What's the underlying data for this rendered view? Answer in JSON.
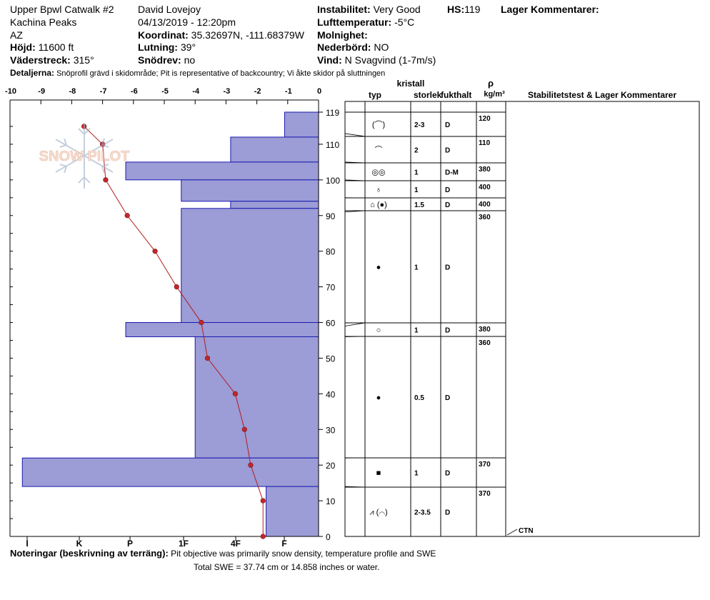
{
  "header": {
    "location": "Upper Bpwl Catwalk #2",
    "region": "Kachina Peaks",
    "state": "AZ",
    "elevation_label": "Höjd:",
    "elevation": "11600 ft",
    "aspect_label": "Väderstreck:",
    "aspect": "315°",
    "observer": "David Lovejoy",
    "datetime": "04/13/2019 - 12:20pm",
    "coord_label": "Koordinat:",
    "coord": "35.32697N, -111.68379W",
    "slope_label": "Lutning:",
    "slope": "39°",
    "drift_label": "Snödrev:",
    "drift": "no",
    "stability_label": "Instabilitet:",
    "stability": "Very Good",
    "hs_label": "HS:",
    "hs": "119",
    "layer_comments_label": "Lager Kommentarer:",
    "air_temp_label": "Lufttemperatur:",
    "air_temp": "-5°C",
    "sky_label": "Molnighet:",
    "sky": "",
    "precip_label": "Nederbörd:",
    "precip": "NO",
    "wind_label": "Vind:",
    "wind": "N Svagvind (1-7m/s)",
    "details_label": "Detaljerna:",
    "details": "Snöprofil grävd i skidområde;  Pit is representative of backcountry;  Vi åkte skidor på sluttningen"
  },
  "notes": {
    "label": "Noteringar (beskrivning av terräng):",
    "text": "Pit objective was primarily snow density, temperature profile and SWE",
    "swe": "Total SWE = 37.74 cm or 14.858 inches or water."
  },
  "logo_text": "SNOW PILOT",
  "colors": {
    "hardness_fill": "#9c9cd6",
    "hardness_stroke": "#1a1ab0",
    "temp_line": "#b31b1b",
    "temp_marker": "#c0282a"
  },
  "table_headers": {
    "crystal": "kristall",
    "type": "typ",
    "size": "storlek",
    "moisture": "fukthalt",
    "rho": "ρ",
    "density_unit": "kg/m³",
    "tests": "Stabilitetstest & Lager Kommentarer"
  },
  "chart_data": {
    "type": "snow-profile",
    "temp_axis": {
      "min": -10,
      "max": 0,
      "ticks": [
        "-10",
        "-9",
        "-8",
        "-7",
        "-6",
        "-5",
        "-4",
        "-3",
        "-2",
        "-1",
        "0"
      ]
    },
    "height_axis": {
      "min": 0,
      "max": 119,
      "ticks": [
        "0",
        "10",
        "20",
        "30",
        "40",
        "50",
        "60",
        "70",
        "80",
        "90",
        "100",
        "110",
        "119"
      ]
    },
    "hardness_axis": {
      "ticks": [
        "I",
        "K",
        "P",
        "1F",
        "4F",
        "F"
      ]
    },
    "temperature_profile": [
      {
        "height": 115,
        "temp": -7.6
      },
      {
        "height": 110,
        "temp": -7.0
      },
      {
        "height": 100,
        "temp": -6.9
      },
      {
        "height": 90,
        "temp": -6.2
      },
      {
        "height": 80,
        "temp": -5.3
      },
      {
        "height": 70,
        "temp": -4.6
      },
      {
        "height": 60,
        "temp": -3.8
      },
      {
        "height": 50,
        "temp": -3.6
      },
      {
        "height": 40,
        "temp": -2.7
      },
      {
        "height": 30,
        "temp": -2.4
      },
      {
        "height": 20,
        "temp": -2.2
      },
      {
        "height": 10,
        "temp": -1.8
      },
      {
        "height": 0,
        "temp": -1.8
      }
    ],
    "hardness_layers": [
      {
        "bottom": 112,
        "top": 119,
        "temp_extent": -1.1
      },
      {
        "bottom": 105,
        "top": 112,
        "temp_extent": -2.85
      },
      {
        "bottom": 100,
        "top": 105,
        "temp_extent": -6.25
      },
      {
        "bottom": 94,
        "top": 100,
        "temp_extent": -4.45
      },
      {
        "bottom": 92,
        "top": 94,
        "temp_extent": -2.85
      },
      {
        "bottom": 60,
        "top": 92,
        "temp_extent": -4.45
      },
      {
        "bottom": 56,
        "top": 60,
        "temp_extent": -6.25
      },
      {
        "bottom": 22,
        "top": 56,
        "temp_extent": -4.0
      },
      {
        "bottom": 14,
        "top": 22,
        "temp_extent": -9.6
      },
      {
        "bottom": 0,
        "top": 14,
        "temp_extent": -1.7
      }
    ],
    "layers_table": [
      {
        "bottom": 113,
        "top": 119,
        "crystal": "(⌒)",
        "size": "2-3",
        "moisture": "D",
        "density": "120"
      },
      {
        "bottom": 105,
        "top": 113,
        "crystal": "⌒",
        "size": "2",
        "moisture": "D",
        "density": "110"
      },
      {
        "bottom": 100,
        "top": 105,
        "crystal": "◎◎",
        "size": "1",
        "moisture": "D-M",
        "density": "380"
      },
      {
        "bottom": 95,
        "top": 100,
        "crystal": "♁",
        "size": "1",
        "moisture": "D",
        "density": "400"
      },
      {
        "bottom": 91,
        "top": 95,
        "crystal": "⌂ (●)",
        "size": "1.5",
        "moisture": "D",
        "density": "400"
      },
      {
        "bottom": 59,
        "top": 91,
        "crystal": "●",
        "size": "1",
        "moisture": "D",
        "density": "360"
      },
      {
        "bottom": 56,
        "top": 59,
        "crystal": "○",
        "size": "1",
        "moisture": "D",
        "density": "380"
      },
      {
        "bottom": 22,
        "top": 56,
        "crystal": "●",
        "size": "0.5",
        "moisture": "D",
        "density": "360"
      },
      {
        "bottom": 14,
        "top": 22,
        "crystal": "■",
        "size": "1",
        "moisture": "D",
        "density": "370"
      },
      {
        "bottom": 0,
        "top": 14,
        "crystal": "⩘ (⌒)",
        "size": "2-3.5",
        "moisture": "D",
        "density": "370"
      }
    ],
    "stability_tests": [
      {
        "height": 0,
        "label": "CTN"
      }
    ]
  }
}
